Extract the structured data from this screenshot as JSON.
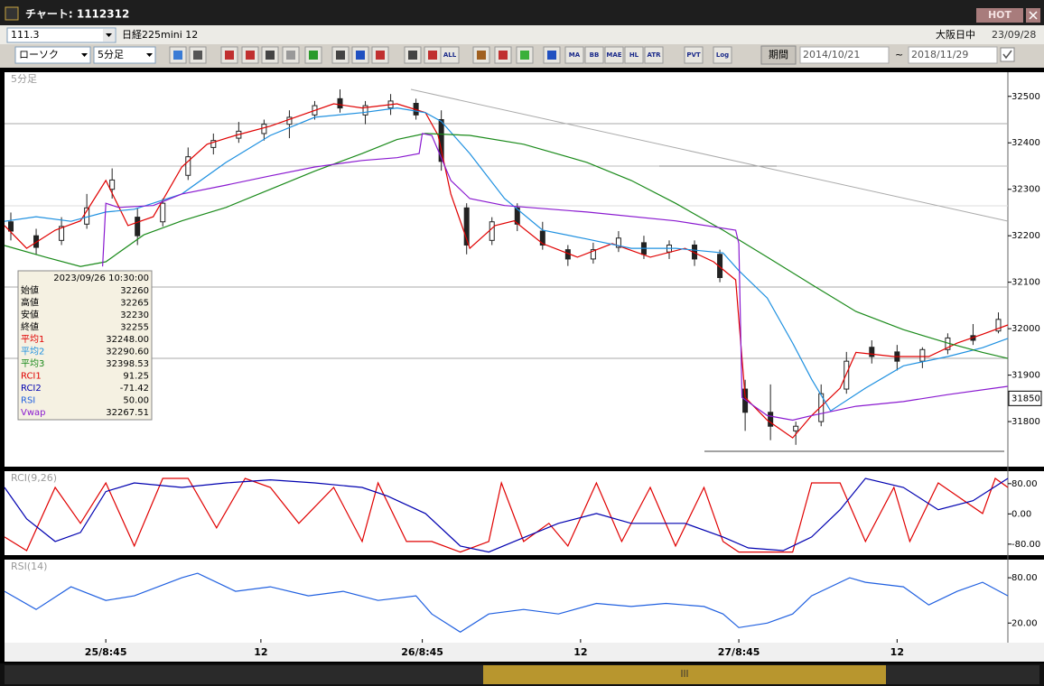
{
  "window": {
    "title": "チャート: 1112312",
    "badge": "HOT"
  },
  "toolbar": {
    "code": "111.3",
    "symbol": "日経225mini 12",
    "session": "大阪日中",
    "date": "23/09/28",
    "chart_type": "ローソク",
    "interval": "5分足",
    "period_label": "期間",
    "from": "2014/10/21",
    "separator": "~",
    "to": "2018/11/29",
    "buttons": [
      "ALL",
      "MA",
      "BB",
      "MAE",
      "HL",
      "ATR",
      "PVT",
      "Log"
    ]
  },
  "chart_data": [
    {
      "type": "candlestick",
      "title": "5分足",
      "xlim": [
        -32,
        285
      ],
      "xticks": [
        {
          "value": 0,
          "label": "25/8:45"
        },
        {
          "value": 49,
          "label": "12"
        },
        {
          "value": 100,
          "label": "26/8:45"
        },
        {
          "value": 150,
          "label": "12"
        },
        {
          "value": 200,
          "label": "27/8:45"
        },
        {
          "value": 250,
          "label": "12"
        }
      ],
      "ylim": [
        31703,
        32552
      ],
      "yticks": [
        31800,
        31900,
        32000,
        32100,
        32200,
        32300,
        32400,
        32500
      ],
      "last_price": 31850,
      "candles": {
        "x": [
          -30,
          -22,
          -14,
          -6,
          2,
          10,
          18,
          26,
          34,
          42,
          50,
          58,
          66,
          74,
          82,
          90,
          98,
          106,
          114,
          122,
          130,
          138,
          146,
          154,
          162,
          170,
          178,
          186,
          194,
          202,
          210,
          218,
          226,
          234,
          242,
          250,
          258,
          266,
          274,
          282
        ],
        "open": [
          32230,
          32200,
          32190,
          32225,
          32300,
          32240,
          32230,
          32330,
          32390,
          32410,
          32420,
          32440,
          32460,
          32495,
          32460,
          32475,
          32485,
          32450,
          32260,
          32190,
          32260,
          32210,
          32170,
          32150,
          32175,
          32185,
          32165,
          32180,
          32160,
          31870,
          31820,
          31780,
          31800,
          31870,
          31960,
          31950,
          31930,
          31955,
          31985,
          31995
        ],
        "high": [
          32250,
          32215,
          32240,
          32290,
          32345,
          32260,
          32280,
          32390,
          32420,
          32445,
          32450,
          32470,
          32490,
          32515,
          32490,
          32505,
          32495,
          32470,
          32270,
          32240,
          32270,
          32230,
          32180,
          32185,
          32210,
          32200,
          32190,
          32190,
          32170,
          31890,
          31880,
          31800,
          31880,
          31950,
          31975,
          31965,
          31960,
          31990,
          32010,
          32035
        ],
        "low": [
          32190,
          32160,
          32180,
          32215,
          32280,
          32180,
          32220,
          32320,
          32375,
          32400,
          32405,
          32410,
          32450,
          32465,
          32440,
          32460,
          32450,
          32340,
          32160,
          32180,
          32210,
          32170,
          32135,
          32140,
          32165,
          32150,
          32150,
          32135,
          32100,
          31780,
          31760,
          31750,
          31790,
          31860,
          31925,
          31910,
          31915,
          31945,
          31965,
          31990
        ],
        "close": [
          32210,
          32175,
          32220,
          32260,
          32320,
          32200,
          32270,
          32370,
          32405,
          32425,
          32440,
          32455,
          32480,
          32475,
          32480,
          32490,
          32460,
          32360,
          32180,
          32230,
          32225,
          32180,
          32150,
          32170,
          32195,
          32160,
          32180,
          32150,
          32110,
          31820,
          31790,
          31790,
          31860,
          31930,
          31940,
          31930,
          31955,
          31980,
          31975,
          32020
        ]
      },
      "series": [
        {
          "name": "平均1",
          "color": "#e00000",
          "x": [
            -32,
            -25,
            -16,
            -8,
            0,
            7,
            15,
            24,
            32,
            41,
            52,
            64,
            72,
            81,
            92,
            101,
            105,
            109,
            115,
            123,
            129,
            138,
            149,
            160,
            172,
            183,
            192,
            199,
            202,
            209,
            217,
            223,
            232,
            237,
            249,
            260,
            269,
            277,
            285
          ],
          "values": [
            32222,
            32173,
            32212,
            32232,
            32319,
            32222,
            32241,
            32348,
            32397,
            32416,
            32436,
            32465,
            32484,
            32475,
            32484,
            32465,
            32416,
            32290,
            32173,
            32222,
            32232,
            32183,
            32154,
            32183,
            32154,
            32173,
            32144,
            32105,
            31852,
            31803,
            31765,
            31813,
            31872,
            31949,
            31940,
            31940,
            31969,
            31988,
            32008
          ]
        },
        {
          "name": "平均2",
          "color": "#1e90e0",
          "x": [
            -32,
            -22,
            -11,
            0,
            9,
            24,
            38,
            52,
            66,
            81,
            92,
            101,
            106,
            115,
            126,
            138,
            152,
            166,
            180,
            195,
            200,
            209,
            217,
            223,
            229,
            240,
            252,
            266,
            277,
            285
          ],
          "values": [
            32231,
            32241,
            32231,
            32251,
            32257,
            32290,
            32358,
            32416,
            32455,
            32465,
            32475,
            32465,
            32446,
            32377,
            32280,
            32212,
            32193,
            32173,
            32173,
            32163,
            32125,
            32066,
            31969,
            31891,
            31823,
            31872,
            31920,
            31940,
            31959,
            31979
          ]
        },
        {
          "name": "平均3",
          "color": "#1a8a1a",
          "x": [
            -32,
            -19,
            -8,
            0,
            12,
            24,
            38,
            52,
            66,
            81,
            92,
            101,
            115,
            132,
            152,
            166,
            180,
            195,
            209,
            223,
            237,
            252,
            266,
            277,
            285
          ],
          "values": [
            32179,
            32154,
            32134,
            32144,
            32202,
            32232,
            32261,
            32300,
            32339,
            32377,
            32407,
            32420,
            32416,
            32397,
            32358,
            32319,
            32270,
            32212,
            32154,
            32095,
            32037,
            31998,
            31969,
            31949,
            31936
          ]
        },
        {
          "name": "Vwap",
          "color": "#8a1ad0",
          "x": [
            -1,
            0,
            4,
            15,
            24,
            38,
            52,
            66,
            81,
            92,
            99,
            100,
            103,
            109,
            115,
            126,
            152,
            180,
            199,
            200,
            201,
            209,
            217,
            223,
            237,
            252,
            266,
            285
          ],
          "values": [
            32134,
            32270,
            32261,
            32265,
            32290,
            32309,
            32329,
            32348,
            32362,
            32368,
            32377,
            32420,
            32416,
            32319,
            32280,
            32265,
            32251,
            32232,
            32212,
            32183,
            31852,
            31813,
            31803,
            31813,
            31833,
            31843,
            31858,
            31876
          ]
        }
      ]
    },
    {
      "type": "line",
      "title": "RCI(9,26)",
      "xlim": [
        -32,
        285
      ],
      "ylim": [
        -109,
        113
      ],
      "yticks": [
        {
          "value": 80,
          "label": "80.00"
        },
        {
          "value": 0,
          "label": "0.00"
        },
        {
          "value": -80,
          "label": "-80.00"
        }
      ],
      "series": [
        {
          "name": "RCI1",
          "color": "#e00000",
          "x": [
            -32,
            -25,
            -16,
            -8,
            0,
            9,
            18,
            26,
            35,
            44,
            52,
            61,
            72,
            81,
            86,
            95,
            103,
            112,
            121,
            125,
            132,
            140,
            146,
            155,
            163,
            172,
            180,
            189,
            195,
            200,
            209,
            217,
            223,
            232,
            240,
            249,
            254,
            263,
            277,
            281,
            285
          ],
          "values": [
            -61,
            -97,
            70,
            -25,
            82,
            -85,
            94,
            94,
            -37,
            94,
            70,
            -25,
            70,
            -73,
            82,
            -73,
            -73,
            -101,
            -73,
            82,
            -73,
            -25,
            -85,
            82,
            -73,
            70,
            -85,
            70,
            -73,
            -101,
            -101,
            -101,
            82,
            82,
            -73,
            70,
            -73,
            82,
            1,
            94,
            70
          ]
        },
        {
          "name": "RCI2",
          "color": "#0000b0",
          "x": [
            -32,
            -25,
            -16,
            -8,
            0,
            9,
            24,
            38,
            52,
            66,
            81,
            89,
            101,
            112,
            121,
            129,
            143,
            155,
            166,
            183,
            195,
            203,
            214,
            223,
            232,
            240,
            252,
            263,
            274,
            285
          ],
          "values": [
            70,
            -13,
            -73,
            -49,
            59,
            82,
            70,
            82,
            90,
            82,
            70,
            47,
            1,
            -85,
            -101,
            -73,
            -25,
            1,
            -25,
            -25,
            -61,
            -90,
            -97,
            -61,
            11,
            94,
            70,
            11,
            35,
            94
          ]
        }
      ]
    },
    {
      "type": "line",
      "title": "RSI(14)",
      "xlim": [
        -32,
        285
      ],
      "ylim": [
        -6,
        104
      ],
      "yticks": [
        {
          "value": 80,
          "label": "80.00"
        },
        {
          "value": 20,
          "label": "20.00"
        }
      ],
      "series": [
        {
          "name": "RSI",
          "color": "#2060e0",
          "x": [
            -32,
            -22,
            -11,
            0,
            9,
            24,
            29,
            41,
            52,
            64,
            75,
            86,
            98,
            103,
            112,
            121,
            132,
            143,
            155,
            166,
            177,
            189,
            195,
            200,
            209,
            217,
            223,
            235,
            240,
            252,
            260,
            269,
            277,
            285
          ],
          "values": [
            62,
            38,
            68,
            50,
            56,
            80,
            86,
            62,
            68,
            56,
            62,
            50,
            56,
            32,
            8,
            32,
            38,
            32,
            46,
            42,
            46,
            42,
            32,
            14,
            20,
            32,
            56,
            80,
            74,
            68,
            44,
            62,
            74,
            56
          ]
        }
      ]
    }
  ],
  "info_box": {
    "datetime": "2023/09/26  10:30:00",
    "rows": [
      {
        "label": "始値",
        "value": "32260",
        "color": "#000000"
      },
      {
        "label": "高値",
        "value": "32265",
        "color": "#000000"
      },
      {
        "label": "安値",
        "value": "32230",
        "color": "#000000"
      },
      {
        "label": "終値",
        "value": "32255",
        "color": "#000000"
      },
      {
        "label": "平均1",
        "value": "32248.00",
        "color": "#e00000"
      },
      {
        "label": "平均2",
        "value": "32290.60",
        "color": "#1e90e0"
      },
      {
        "label": "平均3",
        "value": "32398.53",
        "color": "#1a8a1a"
      },
      {
        "label": "RCI1",
        "value": "91.25",
        "color": "#e00000"
      },
      {
        "label": "RCI2",
        "value": "-71.42",
        "color": "#0000b0"
      },
      {
        "label": "RSI",
        "value": "50.00",
        "color": "#2060e0"
      },
      {
        "label": "Vwap",
        "value": "32267.51",
        "color": "#8a1ad0"
      }
    ]
  }
}
